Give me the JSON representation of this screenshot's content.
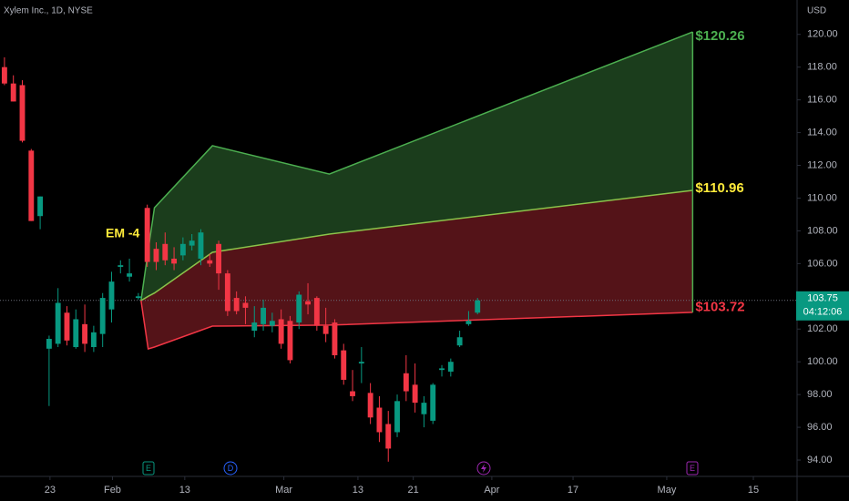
{
  "header": {
    "symbol": "Xylem Inc., 1D, NYSE",
    "currency": "USD"
  },
  "chart_data": {
    "type": "candlestick",
    "x": [
      0,
      1,
      2,
      3,
      4,
      5,
      6,
      7,
      8,
      9,
      10,
      11,
      12,
      13,
      14,
      15,
      16,
      17,
      18,
      19,
      20,
      21,
      22,
      23,
      24,
      25,
      26,
      27,
      28,
      29,
      30,
      31,
      32,
      33,
      34,
      35,
      36,
      37,
      38,
      39,
      40,
      41,
      42,
      43,
      44,
      45,
      46,
      47,
      48,
      49,
      50,
      51,
      52,
      53
    ],
    "open": [
      118.0,
      117.0,
      116.9,
      112.9,
      108.9,
      100.8,
      101.1,
      103.0,
      100.9,
      102.3,
      100.9,
      101.7,
      103.2,
      105.8,
      105.2,
      103.9,
      109.4,
      106.9,
      107.2,
      106.3,
      106.5,
      107.1,
      106.3,
      106.2,
      107.2,
      105.4,
      103.9,
      103.6,
      101.9,
      102.3,
      102.2,
      102.6,
      102.5,
      102.4,
      103.7,
      103.9,
      102.2,
      102.4,
      100.7,
      98.2,
      99.9,
      98.1,
      97.2,
      96.2,
      95.7,
      99.3,
      98.6,
      96.8,
      96.4,
      99.5,
      99.4,
      101.0,
      102.3,
      103.0
    ],
    "high": [
      118.6,
      117.5,
      117.2,
      113.0,
      110.1,
      101.6,
      104.5,
      103.4,
      103.2,
      103.5,
      102.2,
      104.2,
      105.5,
      106.2,
      106.3,
      104.2,
      109.6,
      107.3,
      107.9,
      107.0,
      107.6,
      107.8,
      108.1,
      106.6,
      107.4,
      105.6,
      104.3,
      104.0,
      103.4,
      103.8,
      103.0,
      103.2,
      102.8,
      104.3,
      104.8,
      104.0,
      103.3,
      102.6,
      101.1,
      99.5,
      100.9,
      98.7,
      97.9,
      97.0,
      98.0,
      100.4,
      99.9,
      97.9,
      98.7,
      99.8,
      100.2,
      101.9,
      103.1,
      103.9
    ],
    "low": [
      116.9,
      115.9,
      113.4,
      108.6,
      108.1,
      97.3,
      100.9,
      101.0,
      100.8,
      100.6,
      100.6,
      100.9,
      102.4,
      105.4,
      104.9,
      103.8,
      105.8,
      105.6,
      105.9,
      105.6,
      106.2,
      106.8,
      105.9,
      105.8,
      104.4,
      102.8,
      102.9,
      102.3,
      101.5,
      101.9,
      101.8,
      100.8,
      99.9,
      102.0,
      102.9,
      101.9,
      101.2,
      100.2,
      98.6,
      97.6,
      98.7,
      96.2,
      95.1,
      93.9,
      95.4,
      97.6,
      96.9,
      96.0,
      96.2,
      99.1,
      99.1,
      100.9,
      102.2,
      102.9
    ],
    "close": [
      117.0,
      115.9,
      113.5,
      108.6,
      110.1,
      101.4,
      103.6,
      101.3,
      102.6,
      101.1,
      101.8,
      103.9,
      104.9,
      105.9,
      105.4,
      104.0,
      106.1,
      106.1,
      106.2,
      106.0,
      107.2,
      107.4,
      107.9,
      106.0,
      105.4,
      103.1,
      103.1,
      103.3,
      102.4,
      103.3,
      102.5,
      101.1,
      100.1,
      104.1,
      103.5,
      102.2,
      101.7,
      100.4,
      98.9,
      97.9,
      100.0,
      96.6,
      95.7,
      94.7,
      97.6,
      98.2,
      97.5,
      97.5,
      98.6,
      99.6,
      100.0,
      101.5,
      102.5,
      103.75
    ],
    "up_color": "#089981",
    "down_color": "#f23645",
    "xlim": [
      -0.5,
      88.8
    ],
    "xticks": [
      {
        "value": 5.1,
        "label": "23"
      },
      {
        "value": 12.1,
        "label": "Feb"
      },
      {
        "value": 20.2,
        "label": "13"
      },
      {
        "value": 31.3,
        "label": "Mar"
      },
      {
        "value": 39.6,
        "label": "13"
      },
      {
        "value": 45.8,
        "label": "21"
      },
      {
        "value": 54.6,
        "label": "Apr"
      },
      {
        "value": 63.7,
        "label": "17"
      },
      {
        "value": 74.2,
        "label": "May"
      },
      {
        "value": 83.9,
        "label": "15"
      }
    ],
    "ylim": [
      93.0,
      122.1
    ],
    "yticks": [
      {
        "value": 94,
        "label": "94.00"
      },
      {
        "value": 96,
        "label": "96.00"
      },
      {
        "value": 98,
        "label": "98.00"
      },
      {
        "value": 100,
        "label": "100.00"
      },
      {
        "value": 102,
        "label": "102.00"
      },
      {
        "value": 104,
        "label": "104.00"
      },
      {
        "value": 106,
        "label": "106.00"
      },
      {
        "value": 108,
        "label": "108.00"
      },
      {
        "value": 110,
        "label": "110.00"
      },
      {
        "value": 112,
        "label": "112.00"
      },
      {
        "value": 114,
        "label": "114.00"
      },
      {
        "value": 116,
        "label": "116.00"
      },
      {
        "value": 118,
        "label": "118.00"
      },
      {
        "value": 120,
        "label": "120.00"
      }
    ],
    "bands": {
      "x": [
        15.3,
        16.1,
        16.8,
        23.3,
        36.4,
        77.1
      ],
      "upper": [
        103.74,
        106.8,
        109.41,
        113.2,
        111.47,
        120.15
      ],
      "middle": [
        103.74,
        104.0,
        104.2,
        106.69,
        107.8,
        110.47
      ],
      "lower": [
        103.74,
        100.79,
        100.9,
        102.18,
        102.24,
        103.02
      ],
      "upper_color": "#4caf50",
      "middle_color": "#8bc34a",
      "lower_color": "#f23645"
    },
    "annotations": [
      {
        "value": 120.26,
        "label": "$120.26",
        "color": "#4caf50"
      },
      {
        "value": 110.96,
        "label": "$110.96",
        "color": "#ffeb3b"
      },
      {
        "value": 103.72,
        "label": "$103.72",
        "color": "#f23645"
      }
    ],
    "em_label": "EM -4",
    "last_price": {
      "value": 103.75,
      "label": "103.75"
    },
    "countdown": "04:12:06",
    "events": [
      "E",
      "D",
      "E"
    ]
  }
}
